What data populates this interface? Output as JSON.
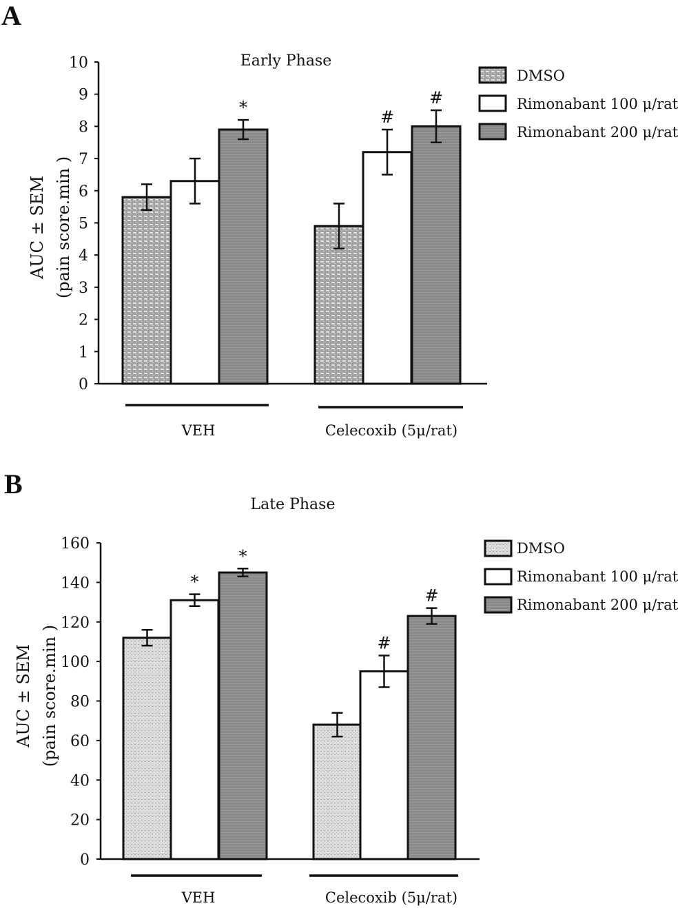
{
  "chart_data": [
    {
      "panel": "A",
      "type": "bar",
      "title": "Early Phase",
      "ylabel": [
        "AUC ± SEM",
        "(pain score.min )"
      ],
      "ylim": [
        0,
        10
      ],
      "yticks": [
        0,
        1,
        2,
        3,
        4,
        5,
        6,
        7,
        8,
        9,
        10
      ],
      "categories": [
        "VEH",
        "Celecoxib (5μ/rat)"
      ],
      "series": [
        {
          "name": "DMSO",
          "values": [
            5.8,
            4.9
          ],
          "errors": [
            0.4,
            0.7
          ],
          "annotations": [
            "",
            ""
          ]
        },
        {
          "name": "Rimonabant 100 μ/rat",
          "values": [
            6.3,
            7.2
          ],
          "errors": [
            0.7,
            0.7
          ],
          "annotations": [
            "",
            "#"
          ]
        },
        {
          "name": "Rimonabant 200 μ/rat",
          "values": [
            7.9,
            8.0
          ],
          "errors": [
            0.3,
            0.5
          ],
          "annotations": [
            "*",
            "#"
          ]
        }
      ],
      "legend_position": "top-right"
    },
    {
      "panel": "B",
      "type": "bar",
      "title": "Late Phase",
      "ylabel": [
        "AUC ± SEM",
        "(pain score.min )"
      ],
      "ylim": [
        0,
        160
      ],
      "yticks": [
        0,
        20,
        40,
        60,
        80,
        100,
        120,
        140,
        160
      ],
      "categories": [
        "VEH",
        "Celecoxib (5μ/rat)"
      ],
      "series": [
        {
          "name": "DMSO",
          "values": [
            112,
            68
          ],
          "errors": [
            4,
            6
          ],
          "annotations": [
            "",
            ""
          ]
        },
        {
          "name": "Rimonabant 100 μ/rat",
          "values": [
            131,
            95
          ],
          "errors": [
            3,
            8
          ],
          "annotations": [
            "*",
            "#"
          ]
        },
        {
          "name": "Rimonabant 200 μ/rat",
          "values": [
            145,
            123
          ],
          "errors": [
            2,
            4
          ],
          "annotations": [
            "*",
            "#"
          ]
        }
      ],
      "legend_position": "top-right"
    }
  ],
  "colors": {
    "dmso_a": "#9a9a9a",
    "dmso_b": "#d4d4d4",
    "r100": "#ffffff",
    "r200_a": "#8a8a8a",
    "r200_b": "#8c8c8c",
    "ink": "#111111"
  }
}
